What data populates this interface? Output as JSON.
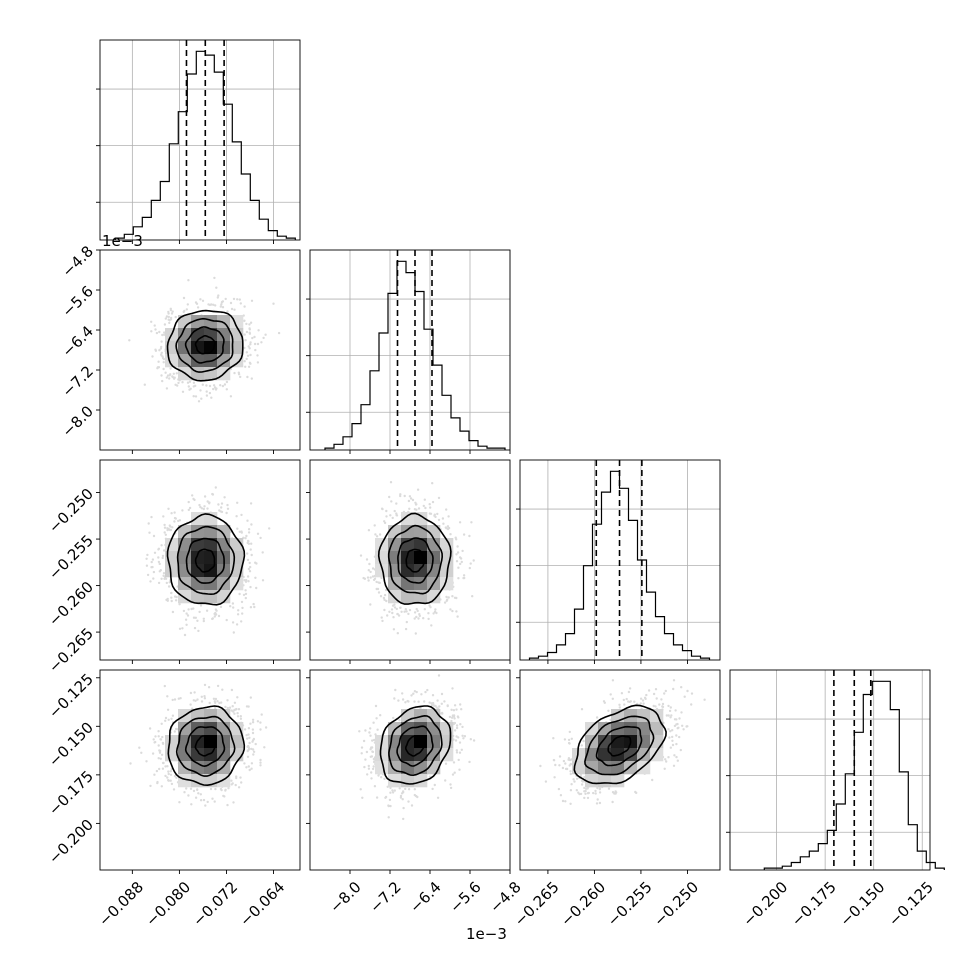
{
  "chart_data": {
    "type": "corner",
    "parameters": [
      {
        "xlim": [
          -0.0935,
          -0.0595
        ],
        "median": -0.0756,
        "q16": -0.0788,
        "q84": -0.0724,
        "hist": [
          1,
          3,
          7,
          12,
          21,
          31,
          51,
          68,
          88,
          100,
          98,
          89,
          72,
          52,
          35,
          21,
          11,
          5,
          2,
          1
        ],
        "ticks": [
          -0.088,
          -0.08,
          -0.072,
          -0.064
        ],
        "tick_labels": [
          "−0.088",
          "−0.080",
          "−0.072",
          "−0.064"
        ],
        "mean": -0.0756,
        "sd": 0.0032
      },
      {
        "xlim": [
          -0.0088,
          -0.0048
        ],
        "median": -0.0067,
        "q16": -0.00705,
        "q84": -0.00636,
        "hist": [
          1,
          3,
          7,
          14,
          24,
          42,
          62,
          83,
          100,
          94,
          84,
          64,
          45,
          29,
          17,
          10,
          5,
          2,
          1,
          1
        ],
        "ticks": [
          -0.008,
          -0.0072,
          -0.0064,
          -0.0056,
          -0.0048
        ],
        "tick_labels": [
          "−8.0",
          "−7.2",
          "−6.4",
          "−5.6",
          "−4.8"
        ],
        "exponent_label": "1e−3",
        "mean": -0.0067,
        "sd": 0.00035
      },
      {
        "xlim": [
          -0.268,
          -0.2465
        ],
        "median": -0.2573,
        "q16": -0.2598,
        "q84": -0.2549,
        "hist": [
          1,
          2,
          4,
          8,
          14,
          27,
          50,
          72,
          89,
          100,
          91,
          74,
          53,
          36,
          23,
          14,
          8,
          5,
          2,
          1
        ],
        "ticks": [
          -0.265,
          -0.26,
          -0.255,
          -0.25
        ],
        "tick_labels": [
          "−0.265",
          "−0.260",
          "−0.255",
          "−0.250"
        ],
        "mean": -0.2573,
        "sd": 0.0024
      },
      {
        "xlim": [
          -0.224,
          -0.121
        ],
        "median": -0.16,
        "q16": -0.1705,
        "q84": -0.1515,
        "hist": [
          1,
          1,
          2,
          4,
          7,
          10,
          14,
          21,
          35,
          51,
          73,
          93,
          100,
          100,
          85,
          52,
          24,
          10,
          4,
          1
        ],
        "ticks": [
          -0.2,
          -0.175,
          -0.15,
          -0.125
        ],
        "tick_labels": [
          "−0.200",
          "−0.175",
          "−0.150",
          "−0.125"
        ],
        "mean": -0.16,
        "sd": 0.01
      }
    ],
    "correlations": {
      "1,0": 0.05,
      "2,0": 0.0,
      "2,1": 0.0,
      "3,0": 0.05,
      "3,1": 0.2,
      "3,2": 0.4
    },
    "grid": true,
    "quantile_lines": "dashed"
  }
}
